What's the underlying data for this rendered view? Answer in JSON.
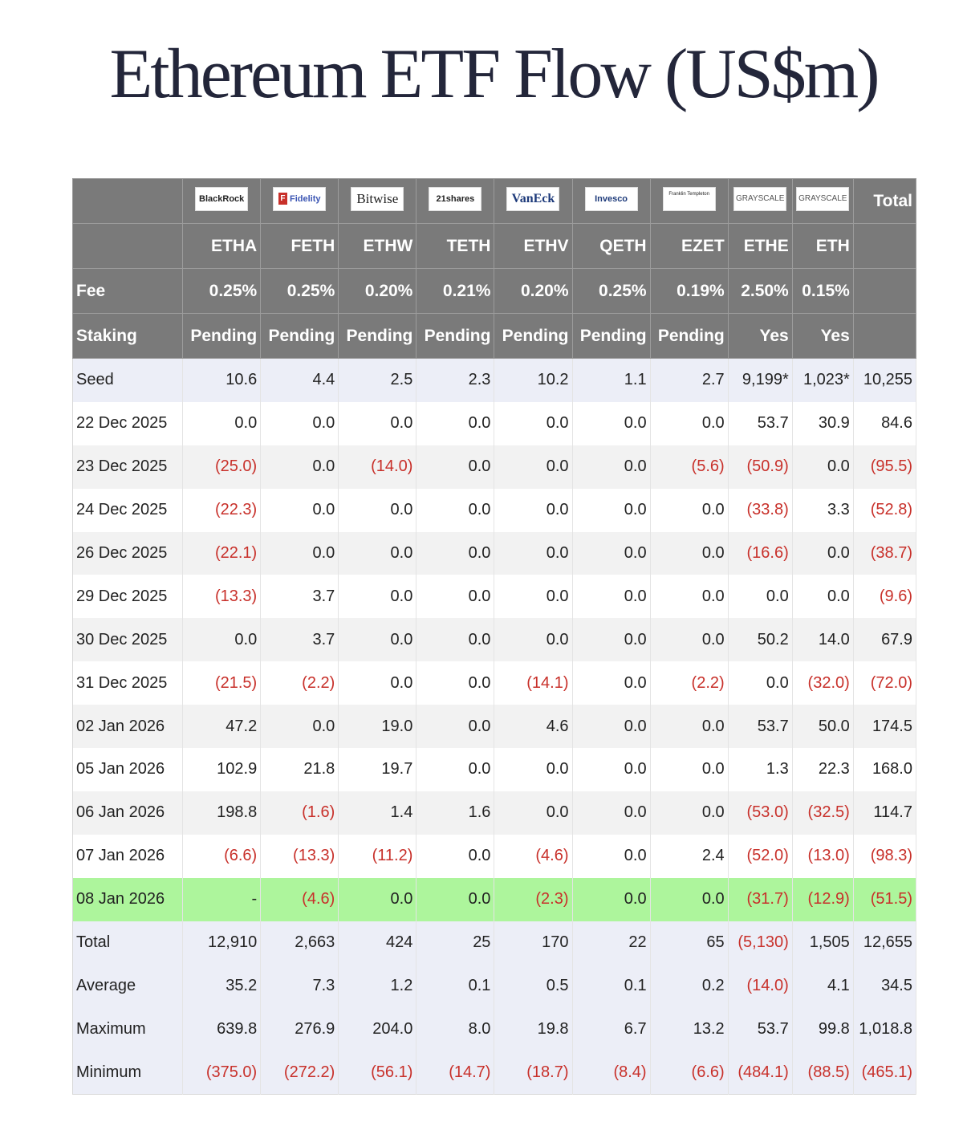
{
  "title": "Ethereum ETF Flow (US$m)",
  "colors": {
    "header_bg": "#7a7a7a",
    "negative": "#c8302a",
    "highlight_row": "#adf59c",
    "summary_bg": "#eceef7"
  },
  "issuers": [
    "BlackRock",
    "Fidelity",
    "Bitwise",
    "21shares",
    "VanEck",
    "Invesco",
    "Franklin Templeton",
    "GRAYSCALE",
    "GRAYSCALE"
  ],
  "total_header": "Total",
  "tickers": [
    "ETHA",
    "FETH",
    "ETHW",
    "TETH",
    "ETHV",
    "QETH",
    "EZET",
    "ETHE",
    "ETH"
  ],
  "fee": {
    "label": "Fee",
    "values": [
      "0.25%",
      "0.25%",
      "0.20%",
      "0.21%",
      "0.20%",
      "0.25%",
      "0.19%",
      "2.50%",
      "0.15%"
    ]
  },
  "staking": {
    "label": "Staking",
    "values": [
      "Pending",
      "Pending",
      "Pending",
      "Pending",
      "Pending",
      "Pending",
      "Pending",
      "Yes",
      "Yes"
    ]
  },
  "rows": [
    {
      "label": "Seed",
      "style": "seed",
      "cells": [
        "10.6",
        "4.4",
        "2.5",
        "2.3",
        "10.2",
        "1.1",
        "2.7",
        "9,199*",
        "1,023*",
        "10,255"
      ]
    },
    {
      "label": "22 Dec 2025",
      "style": "white",
      "cells": [
        "0.0",
        "0.0",
        "0.0",
        "0.0",
        "0.0",
        "0.0",
        "0.0",
        "53.7",
        "30.9",
        "84.6"
      ]
    },
    {
      "label": "23 Dec 2025",
      "style": "gray",
      "cells": [
        "(25.0)",
        "0.0",
        "(14.0)",
        "0.0",
        "0.0",
        "0.0",
        "(5.6)",
        "(50.9)",
        "0.0",
        "(95.5)"
      ]
    },
    {
      "label": "24 Dec 2025",
      "style": "white",
      "cells": [
        "(22.3)",
        "0.0",
        "0.0",
        "0.0",
        "0.0",
        "0.0",
        "0.0",
        "(33.8)",
        "3.3",
        "(52.8)"
      ]
    },
    {
      "label": "26 Dec 2025",
      "style": "gray",
      "cells": [
        "(22.1)",
        "0.0",
        "0.0",
        "0.0",
        "0.0",
        "0.0",
        "0.0",
        "(16.6)",
        "0.0",
        "(38.7)"
      ]
    },
    {
      "label": "29 Dec 2025",
      "style": "white",
      "cells": [
        "(13.3)",
        "3.7",
        "0.0",
        "0.0",
        "0.0",
        "0.0",
        "0.0",
        "0.0",
        "0.0",
        "(9.6)"
      ]
    },
    {
      "label": "30 Dec 2025",
      "style": "gray",
      "cells": [
        "0.0",
        "3.7",
        "0.0",
        "0.0",
        "0.0",
        "0.0",
        "0.0",
        "50.2",
        "14.0",
        "67.9"
      ]
    },
    {
      "label": "31 Dec 2025",
      "style": "white",
      "cells": [
        "(21.5)",
        "(2.2)",
        "0.0",
        "0.0",
        "(14.1)",
        "0.0",
        "(2.2)",
        "0.0",
        "(32.0)",
        "(72.0)"
      ]
    },
    {
      "label": "02 Jan 2026",
      "style": "gray",
      "cells": [
        "47.2",
        "0.0",
        "19.0",
        "0.0",
        "4.6",
        "0.0",
        "0.0",
        "53.7",
        "50.0",
        "174.5"
      ]
    },
    {
      "label": "05 Jan 2026",
      "style": "white",
      "cells": [
        "102.9",
        "21.8",
        "19.7",
        "0.0",
        "0.0",
        "0.0",
        "0.0",
        "1.3",
        "22.3",
        "168.0"
      ]
    },
    {
      "label": "06 Jan 2026",
      "style": "gray",
      "cells": [
        "198.8",
        "(1.6)",
        "1.4",
        "1.6",
        "0.0",
        "0.0",
        "0.0",
        "(53.0)",
        "(32.5)",
        "114.7"
      ]
    },
    {
      "label": "07 Jan 2026",
      "style": "white",
      "cells": [
        "(6.6)",
        "(13.3)",
        "(11.2)",
        "0.0",
        "(4.6)",
        "0.0",
        "2.4",
        "(52.0)",
        "(13.0)",
        "(98.3)"
      ]
    },
    {
      "label": "08 Jan 2026",
      "style": "hl",
      "cells": [
        "-",
        "(4.6)",
        "0.0",
        "0.0",
        "(2.3)",
        "0.0",
        "0.0",
        "(31.7)",
        "(12.9)",
        "(51.5)"
      ]
    },
    {
      "label": "Total",
      "style": "stat",
      "cells": [
        "12,910",
        "2,663",
        "424",
        "25",
        "170",
        "22",
        "65",
        "(5,130)",
        "1,505",
        "12,655"
      ]
    },
    {
      "label": "Average",
      "style": "stat",
      "cells": [
        "35.2",
        "7.3",
        "1.2",
        "0.1",
        "0.5",
        "0.1",
        "0.2",
        "(14.0)",
        "4.1",
        "34.5"
      ]
    },
    {
      "label": "Maximum",
      "style": "stat",
      "cells": [
        "639.8",
        "276.9",
        "204.0",
        "8.0",
        "19.8",
        "6.7",
        "13.2",
        "53.7",
        "99.8",
        "1,018.8"
      ]
    },
    {
      "label": "Minimum",
      "style": "stat",
      "cells": [
        "(375.0)",
        "(272.2)",
        "(56.1)",
        "(14.7)",
        "(18.7)",
        "(8.4)",
        "(6.6)",
        "(484.1)",
        "(88.5)",
        "(465.1)"
      ]
    }
  ]
}
